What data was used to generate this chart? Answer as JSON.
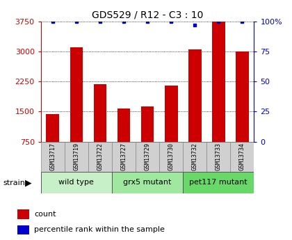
{
  "title": "GDS529 / R12 - C3 : 10",
  "samples": [
    "GSM13717",
    "GSM13719",
    "GSM13722",
    "GSM13727",
    "GSM13729",
    "GSM13730",
    "GSM13732",
    "GSM13733",
    "GSM13734"
  ],
  "counts": [
    1430,
    3100,
    2190,
    1570,
    1630,
    2150,
    3060,
    3750,
    3000
  ],
  "percentile_ranks": [
    100,
    100,
    100,
    100,
    100,
    100,
    97,
    100,
    100
  ],
  "groups": [
    {
      "label": "wild type",
      "start": 0,
      "end": 3,
      "color": "#c8f0c8"
    },
    {
      "label": "grx5 mutant",
      "start": 3,
      "end": 6,
      "color": "#a0e8a0"
    },
    {
      "label": "pet117 mutant",
      "start": 6,
      "end": 9,
      "color": "#68d868"
    }
  ],
  "ylim_left": [
    750,
    3750
  ],
  "ylim_right": [
    0,
    100
  ],
  "yticks_left": [
    750,
    1500,
    2250,
    3000,
    3750
  ],
  "yticks_right": [
    0,
    25,
    50,
    75,
    100
  ],
  "bar_color": "#cc0000",
  "dot_color": "#0000cc",
  "bar_width": 0.55,
  "strain_label": "strain",
  "legend_count_label": "count",
  "legend_percentile_label": "percentile rank within the sample",
  "left_color": "#cc0000",
  "right_color": "#0000cc"
}
